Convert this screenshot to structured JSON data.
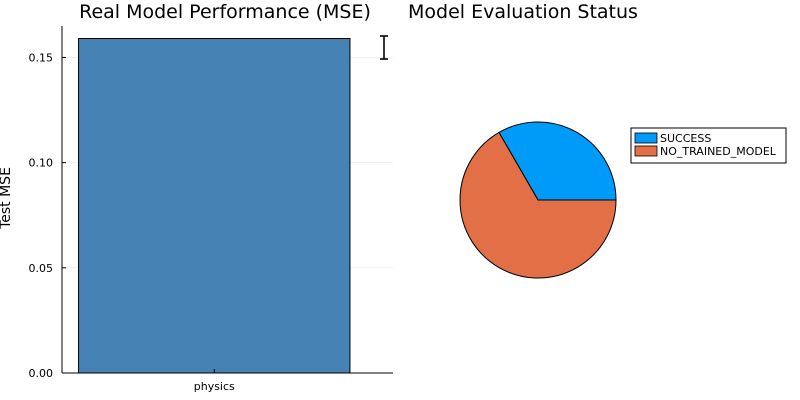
{
  "chart_data": [
    {
      "type": "bar",
      "title": "Real Model Performance (MSE)",
      "xlabel": "",
      "ylabel": "Test MSE",
      "categories": [
        "physics"
      ],
      "values": [
        0.159
      ],
      "error": [
        0.005
      ],
      "ylim": [
        0,
        0.164
      ],
      "yticks": [
        0.0,
        0.05,
        0.1,
        0.15
      ],
      "ytick_labels": [
        "0.00",
        "0.05",
        "0.10",
        "0.15"
      ],
      "grid": true,
      "colors": {
        "bar": "#4682b4"
      }
    },
    {
      "type": "pie",
      "title": "Model Evaluation Status",
      "labels": [
        "SUCCESS",
        "NO_TRAINED_MODEL"
      ],
      "values": [
        1,
        2
      ],
      "colors": [
        "#009af9",
        "#e26f46"
      ],
      "legend_position": "right"
    }
  ]
}
